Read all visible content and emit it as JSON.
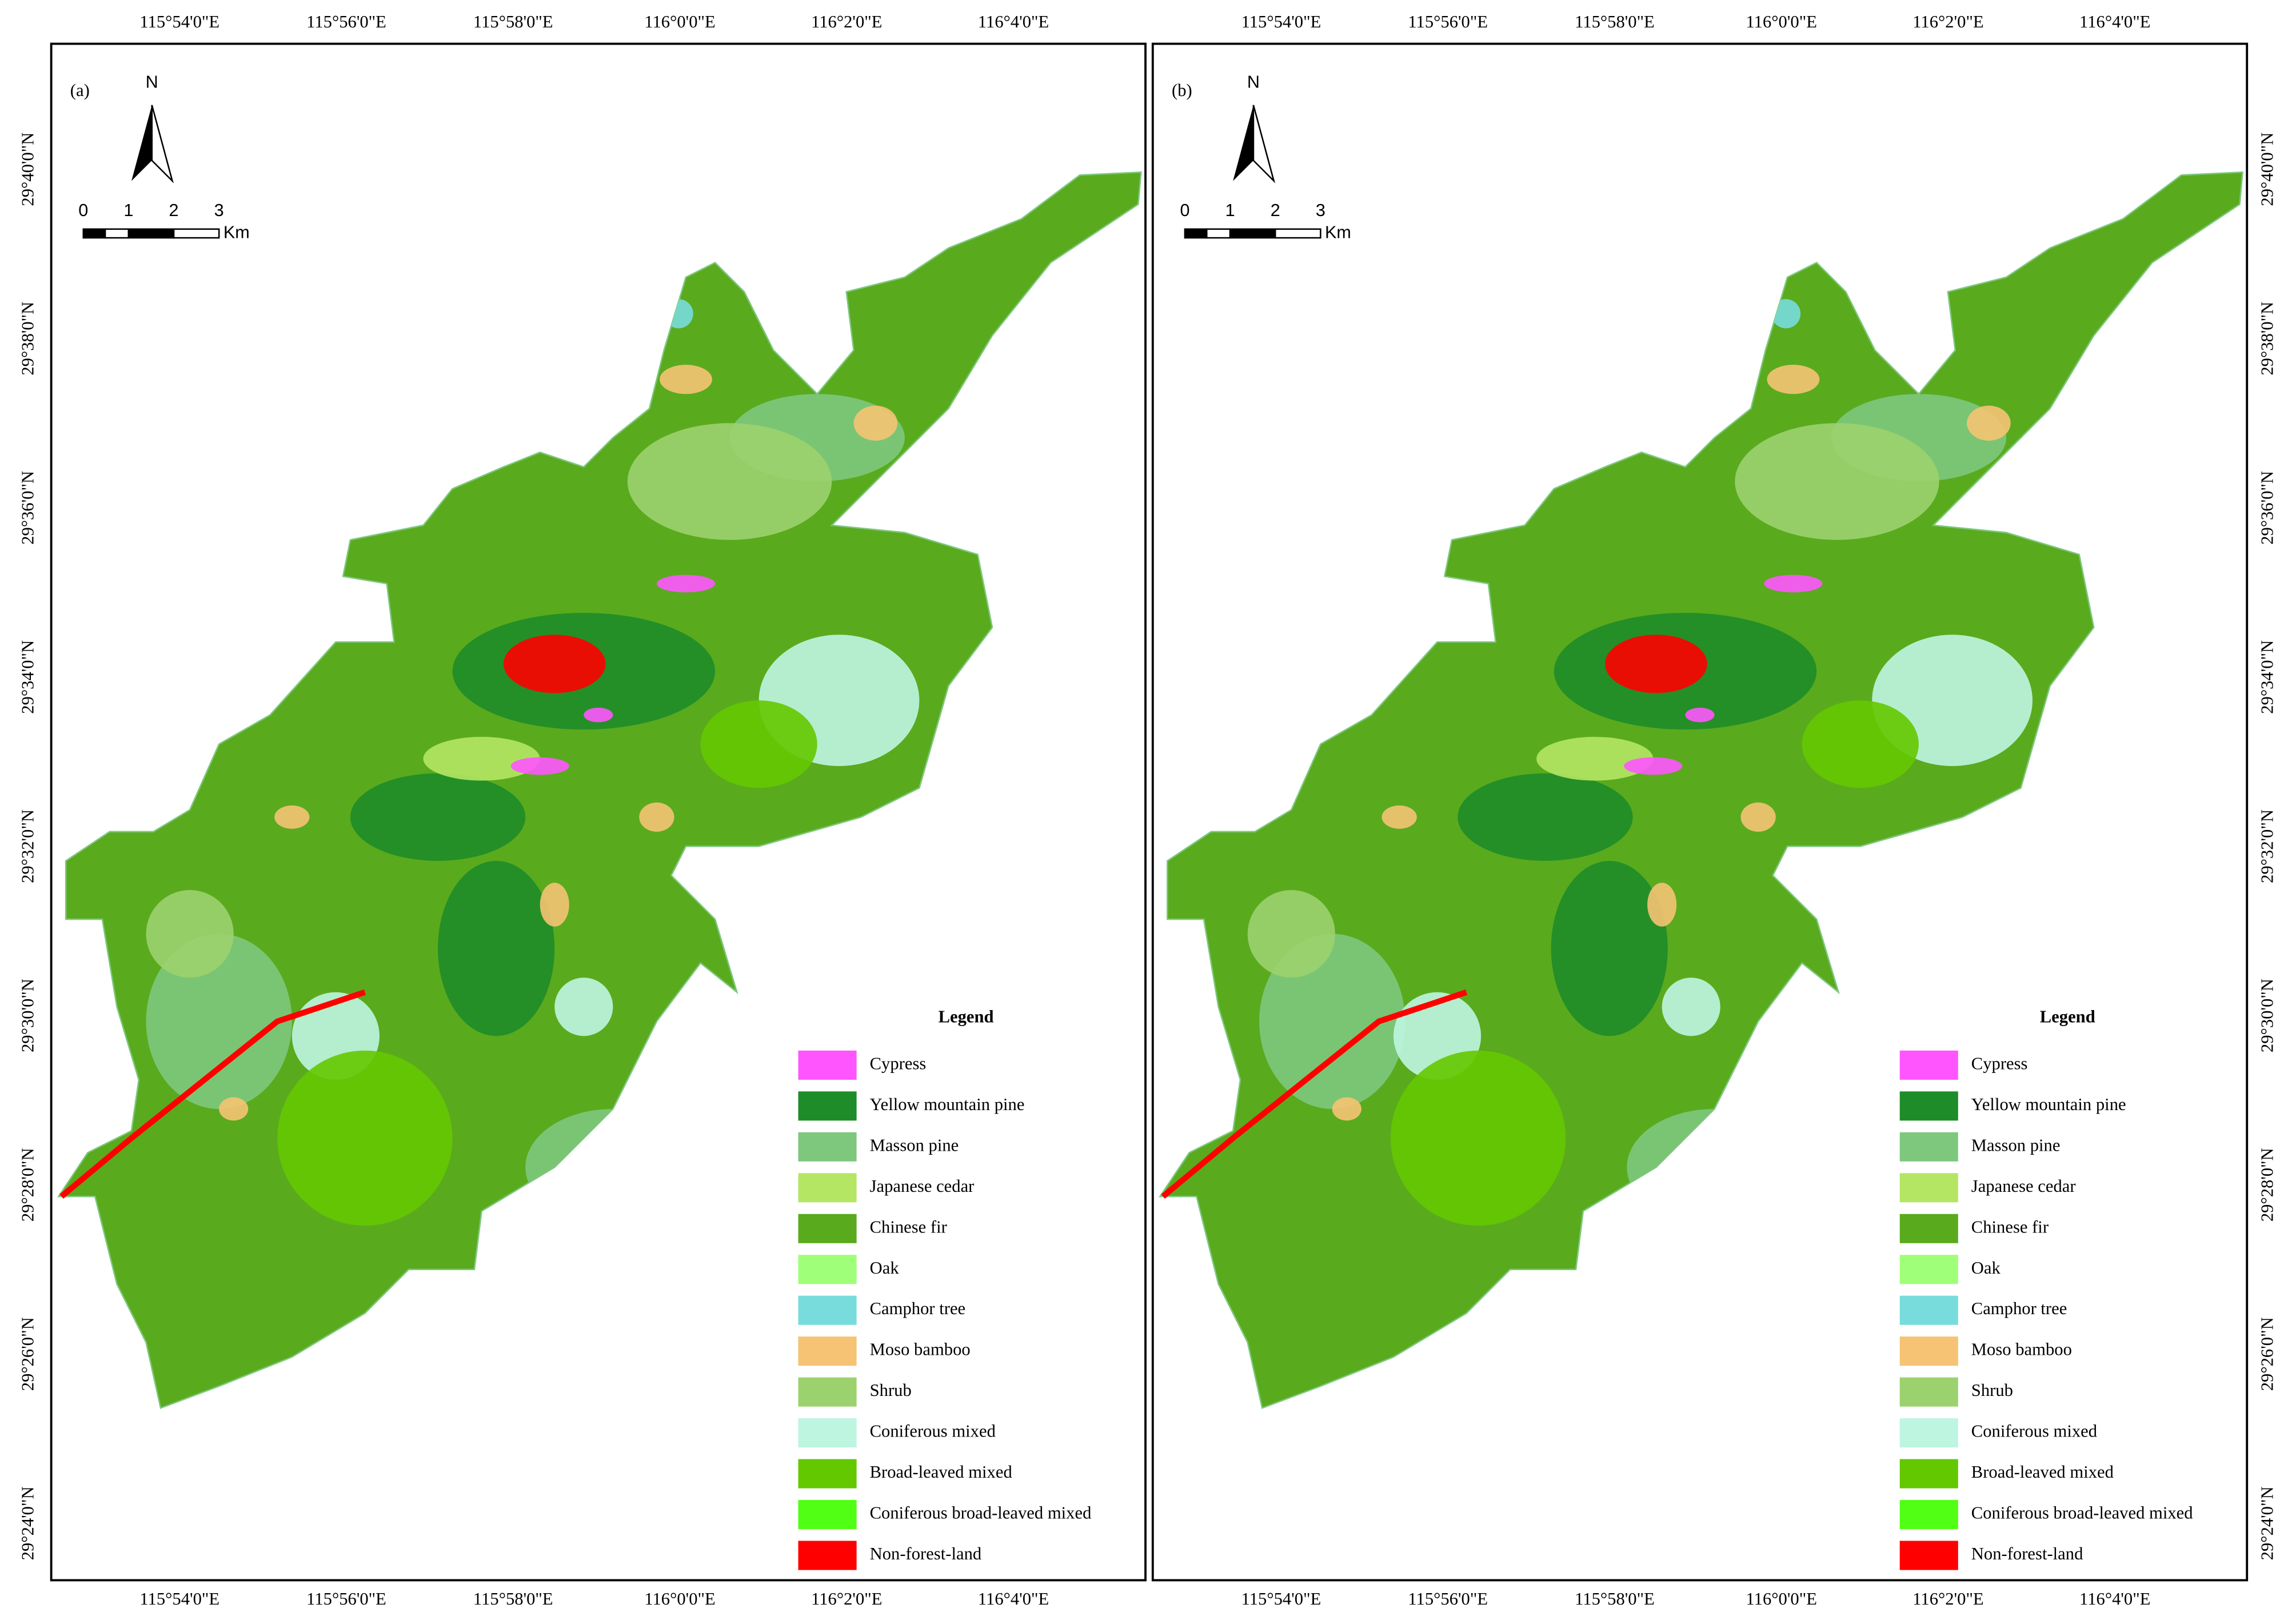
{
  "panels": [
    {
      "label": "(a)"
    },
    {
      "label": "(b)"
    }
  ],
  "map": {
    "north": "N",
    "scale_labels": [
      "0",
      "1",
      "2",
      "3"
    ],
    "scale_unit": "Km",
    "longitude_labels": [
      "115°54'0\"E",
      "115°56'0\"E",
      "115°58'0\"E",
      "116°0'0\"E",
      "116°2'0\"E",
      "116°4'0\"E"
    ],
    "latitude_labels": [
      "29°40'0\"N",
      "29°38'0\"N",
      "29°36'0\"N",
      "29°34'0\"N",
      "29°32'0\"N",
      "29°30'0\"N",
      "29°28'0\"N",
      "29°26'0\"N",
      "29°24'0\"N"
    ]
  },
  "legend": {
    "title": "Legend",
    "items": [
      {
        "name": "Cypress",
        "color": "#ff55ff"
      },
      {
        "name": "Yellow mountain pine",
        "color": "#1e8c28"
      },
      {
        "name": "Masson pine",
        "color": "#7dc87d"
      },
      {
        "name": "Japanese cedar",
        "color": "#b4e664"
      },
      {
        "name": "Chinese fir",
        "color": "#5aaa1e"
      },
      {
        "name": "Oak",
        "color": "#a0ff78"
      },
      {
        "name": "Camphor tree",
        "color": "#78dcdc"
      },
      {
        "name": "Moso bamboo",
        "color": "#f5c373"
      },
      {
        "name": "Shrub",
        "color": "#9bd26e"
      },
      {
        "name": "Coniferous mixed",
        "color": "#bef5e1"
      },
      {
        "name": "Broad-leaved mixed",
        "color": "#64c800"
      },
      {
        "name": "Coniferous broad-leaved mixed",
        "color": "#50ff14"
      },
      {
        "name": "Non-forest-land",
        "color": "#ff0000"
      }
    ]
  }
}
